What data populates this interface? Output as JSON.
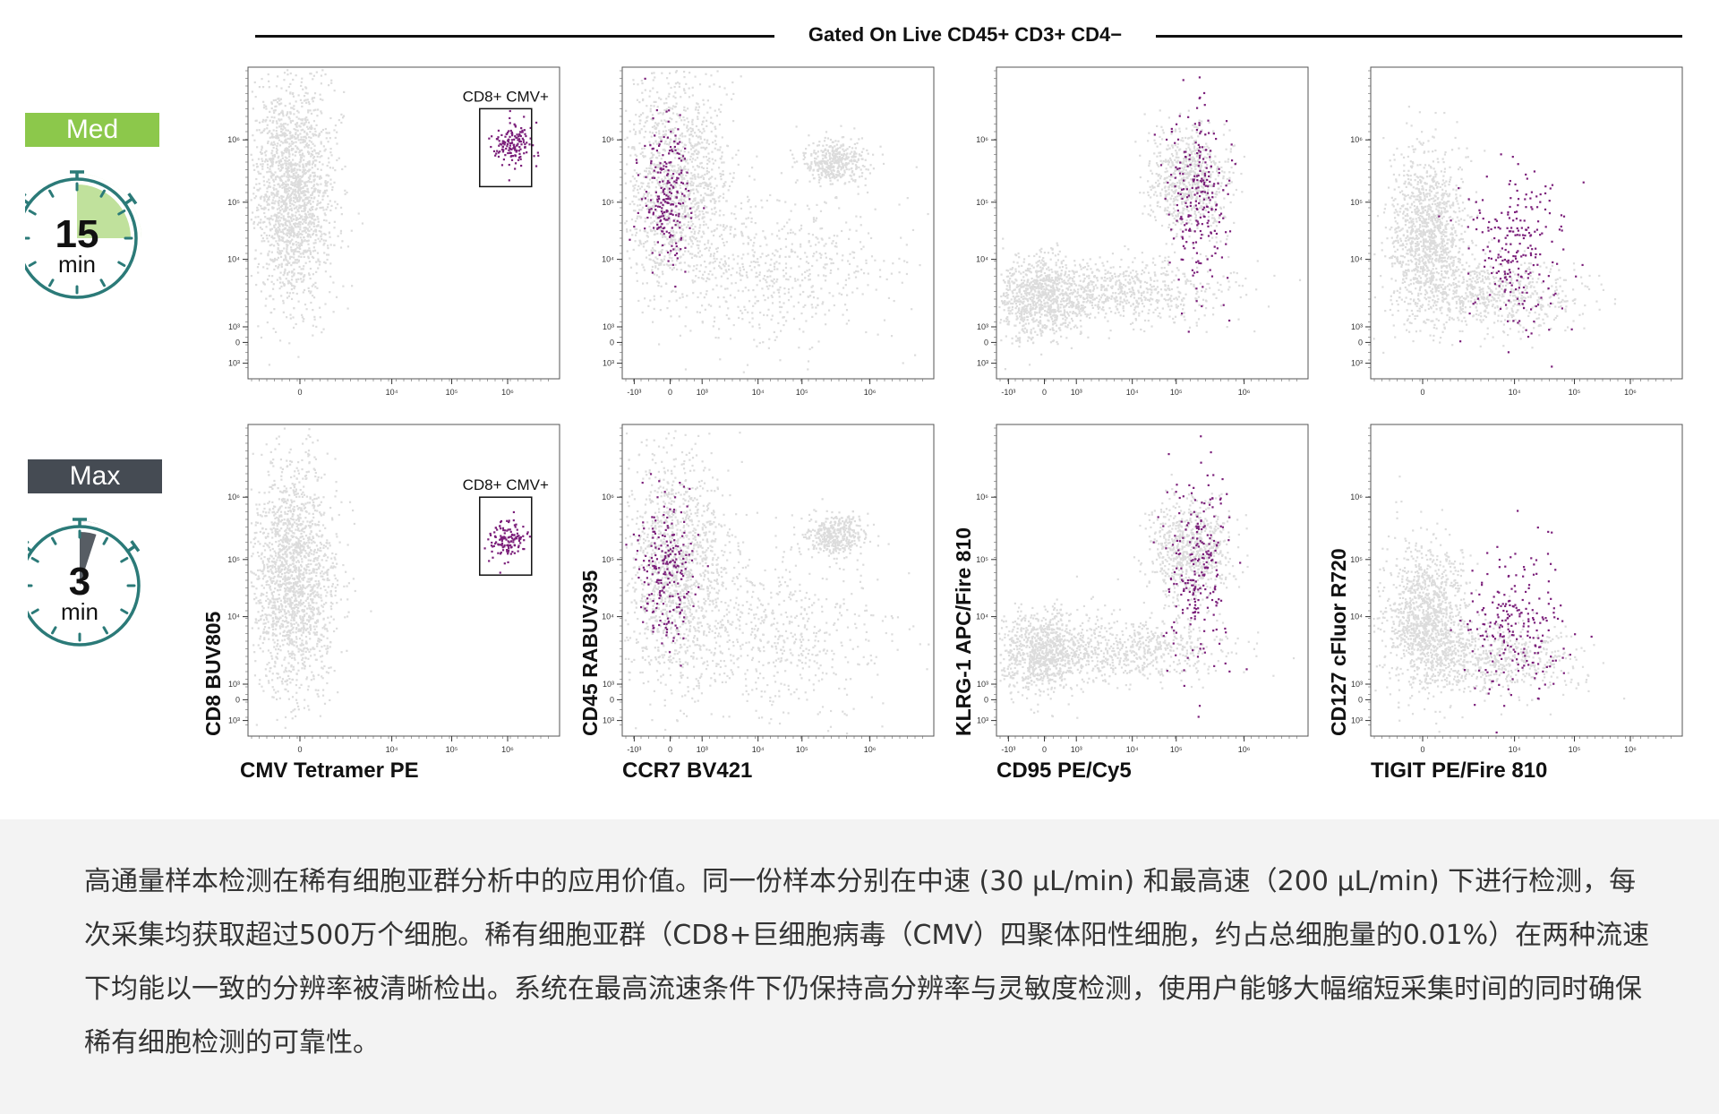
{
  "header": {
    "gate_title": "Gated On Live CD45+ CD3+ CD4−"
  },
  "speeds": [
    {
      "label": "Med",
      "number": "15",
      "unit": "min",
      "color": "#8cc84b",
      "fraction": 0.25
    },
    {
      "label": "Max",
      "number": "3",
      "unit": "min",
      "color": "#454b53",
      "fraction": 0.05
    }
  ],
  "colors": {
    "background_events": "#dcdcdc",
    "highlight_events": "#7b1f7a",
    "timer_ring": "#2b7a78"
  },
  "x_titles": [
    "CMV Tetramer PE",
    "CCR7 BV421",
    "CD95 PE/Cy5",
    "TIGIT PE/Fire 810"
  ],
  "y_titles": [
    "CD8 BUV805",
    "CD45 RABUV395",
    "KLRG-1 APC/Fire 810",
    "CD127 cFluor R720"
  ],
  "caption": "高通量样本检测在稀有细胞亚群分析中的应用价值。同一份样本分别在中速 (30 μL/min) 和最高速（200 μL/min) 下进行检测，每次采集均获取超过500万个细胞。稀有细胞亚群（CD8+巨细胞病毒（CMV）四聚体阳性细胞，约占总细胞量的0.01%）在两种流速下均能以一致的分辨率被清晰检出。系统在最高流速条件下仍保持高分辨率与灵敏度检测，使用户能够大幅缩短采集时间的同时确保稀有细胞检测的可靠性。",
  "chart_data": [
    {
      "type": "scatter",
      "row": "Med",
      "xlabel": "CMV Tetramer PE",
      "ylabel": "CD8 BUV805",
      "x_ticks": [
        "0",
        "10⁴",
        "10⁵",
        "10⁶"
      ],
      "y_ticks": [
        "10³",
        "0",
        "10³",
        "10⁴",
        "10⁵",
        "10⁶"
      ],
      "gate": {
        "label": "CD8+ CMV+",
        "x_range": [
          5.0,
          6.3
        ],
        "y_range": [
          4.7,
          6.2
        ]
      },
      "background_clusters": [
        {
          "x": 0.3,
          "y": 4.6,
          "spread_x": 0.5,
          "spread_y": 1.1,
          "n": 1800
        }
      ],
      "highlight_cluster": {
        "x": 5.8,
        "y": 5.5,
        "spread_x": 0.25,
        "spread_y": 0.2,
        "n": 150
      }
    },
    {
      "type": "scatter",
      "row": "Med",
      "xlabel": "CCR7 BV421",
      "ylabel": "CD45 RABUV395",
      "x_ticks": [
        "-10³",
        "0",
        "10³",
        "10⁴",
        "10⁵",
        "10⁶"
      ],
      "y_ticks": [
        "10³",
        "0",
        "10³",
        "10⁴",
        "10⁵",
        "10⁶"
      ],
      "background_clusters": [
        {
          "x": 0.5,
          "y": 4.8,
          "spread_x": 0.7,
          "spread_y": 1.1,
          "n": 1300
        },
        {
          "x": 4.5,
          "y": 5.2,
          "spread_x": 0.4,
          "spread_y": 0.2,
          "n": 400
        },
        {
          "x": 3.0,
          "y": 3.2,
          "spread_x": 1.5,
          "spread_y": 0.8,
          "n": 600
        }
      ],
      "highlight_cluster": {
        "x": 0.3,
        "y": 4.6,
        "spread_x": 0.3,
        "spread_y": 0.7,
        "n": 230
      }
    },
    {
      "type": "scatter",
      "row": "Med",
      "xlabel": "CD95 PE/Cy5",
      "ylabel": "KLRG-1 APC/Fire 810",
      "x_ticks": [
        "-10³",
        "0",
        "10³",
        "10⁴",
        "10⁵",
        "10⁶"
      ],
      "y_ticks": [
        "10³",
        "0",
        "10³",
        "10⁴",
        "10⁵",
        "10⁶"
      ],
      "background_clusters": [
        {
          "x": 0.3,
          "y": 2.6,
          "spread_x": 0.6,
          "spread_y": 0.4,
          "n": 900
        },
        {
          "x": 4.0,
          "y": 4.8,
          "spread_x": 0.5,
          "spread_y": 0.5,
          "n": 700
        },
        {
          "x": 2.5,
          "y": 2.7,
          "spread_x": 1.3,
          "spread_y": 0.3,
          "n": 600
        }
      ],
      "highlight_cluster": {
        "x": 4.2,
        "y": 4.5,
        "spread_x": 0.35,
        "spread_y": 0.9,
        "n": 230
      }
    },
    {
      "type": "scatter",
      "row": "Med",
      "xlabel": "TIGIT PE/Fire 810",
      "ylabel": "CD127 cFluor R720",
      "x_ticks": [
        "0",
        "10⁴",
        "10⁵",
        "10⁶"
      ],
      "y_ticks": [
        "10³",
        "0",
        "10³",
        "10⁴",
        "10⁵",
        "10⁶"
      ],
      "background_clusters": [
        {
          "x": 0.6,
          "y": 3.8,
          "spread_x": 0.5,
          "spread_y": 0.8,
          "n": 1200
        },
        {
          "x": 2.2,
          "y": 2.6,
          "spread_x": 1.1,
          "spread_y": 0.35,
          "n": 600
        }
      ],
      "highlight_cluster": {
        "x": 2.8,
        "y": 3.5,
        "spread_x": 0.6,
        "spread_y": 0.8,
        "n": 230
      }
    },
    {
      "type": "scatter",
      "row": "Max",
      "xlabel": "CMV Tetramer PE",
      "ylabel": "CD8 BUV805",
      "x_ticks": [
        "0",
        "10⁴",
        "10⁵",
        "10⁶"
      ],
      "y_ticks": [
        "10³",
        "0",
        "10³",
        "10⁴",
        "10⁵",
        "10⁶"
      ],
      "gate": {
        "label": "CD8+ CMV+",
        "x_range": [
          5.0,
          6.3
        ],
        "y_range": [
          4.1,
          5.6
        ]
      },
      "background_clusters": [
        {
          "x": 0.3,
          "y": 4.0,
          "spread_x": 0.5,
          "spread_y": 1.1,
          "n": 1800
        }
      ],
      "highlight_cluster": {
        "x": 5.7,
        "y": 4.8,
        "spread_x": 0.25,
        "spread_y": 0.2,
        "n": 130
      }
    },
    {
      "type": "scatter",
      "row": "Max",
      "xlabel": "CCR7 BV421",
      "ylabel": "CD45 RABUV395",
      "x_ticks": [
        "-10³",
        "0",
        "10³",
        "10⁴",
        "10⁵",
        "10⁶"
      ],
      "y_ticks": [
        "10³",
        "0",
        "10³",
        "10⁴",
        "10⁵",
        "10⁶"
      ],
      "background_clusters": [
        {
          "x": 0.5,
          "y": 4.3,
          "spread_x": 0.7,
          "spread_y": 1.1,
          "n": 1300
        },
        {
          "x": 4.5,
          "y": 4.9,
          "spread_x": 0.4,
          "spread_y": 0.2,
          "n": 400
        },
        {
          "x": 3.0,
          "y": 3.0,
          "spread_x": 1.5,
          "spread_y": 0.8,
          "n": 600
        }
      ],
      "highlight_cluster": {
        "x": 0.3,
        "y": 4.2,
        "spread_x": 0.35,
        "spread_y": 0.7,
        "n": 230
      }
    },
    {
      "type": "scatter",
      "row": "Max",
      "xlabel": "CD95 PE/Cy5",
      "ylabel": "KLRG-1 APC/Fire 810",
      "x_ticks": [
        "-10³",
        "0",
        "10³",
        "10⁴",
        "10⁵",
        "10⁶"
      ],
      "y_ticks": [
        "10³",
        "0",
        "10³",
        "10⁴",
        "10⁵",
        "10⁶"
      ],
      "background_clusters": [
        {
          "x": 0.3,
          "y": 2.6,
          "spread_x": 0.6,
          "spread_y": 0.4,
          "n": 900
        },
        {
          "x": 4.0,
          "y": 4.6,
          "spread_x": 0.5,
          "spread_y": 0.5,
          "n": 700
        },
        {
          "x": 2.5,
          "y": 2.7,
          "spread_x": 1.3,
          "spread_y": 0.3,
          "n": 600
        }
      ],
      "highlight_cluster": {
        "x": 4.2,
        "y": 4.2,
        "spread_x": 0.35,
        "spread_y": 0.9,
        "n": 230
      }
    },
    {
      "type": "scatter",
      "row": "Max",
      "xlabel": "TIGIT PE/Fire 810",
      "ylabel": "CD127 cFluor R720",
      "x_ticks": [
        "0",
        "10⁴",
        "10⁵",
        "10⁶"
      ],
      "y_ticks": [
        "10³",
        "0",
        "10³",
        "10⁴",
        "10⁵",
        "10⁶"
      ],
      "background_clusters": [
        {
          "x": 0.6,
          "y": 3.3,
          "spread_x": 0.5,
          "spread_y": 0.7,
          "n": 1200
        },
        {
          "x": 2.2,
          "y": 2.5,
          "spread_x": 1.1,
          "spread_y": 0.35,
          "n": 600
        }
      ],
      "highlight_cluster": {
        "x": 2.8,
        "y": 3.1,
        "spread_x": 0.6,
        "spread_y": 0.7,
        "n": 230
      }
    }
  ]
}
